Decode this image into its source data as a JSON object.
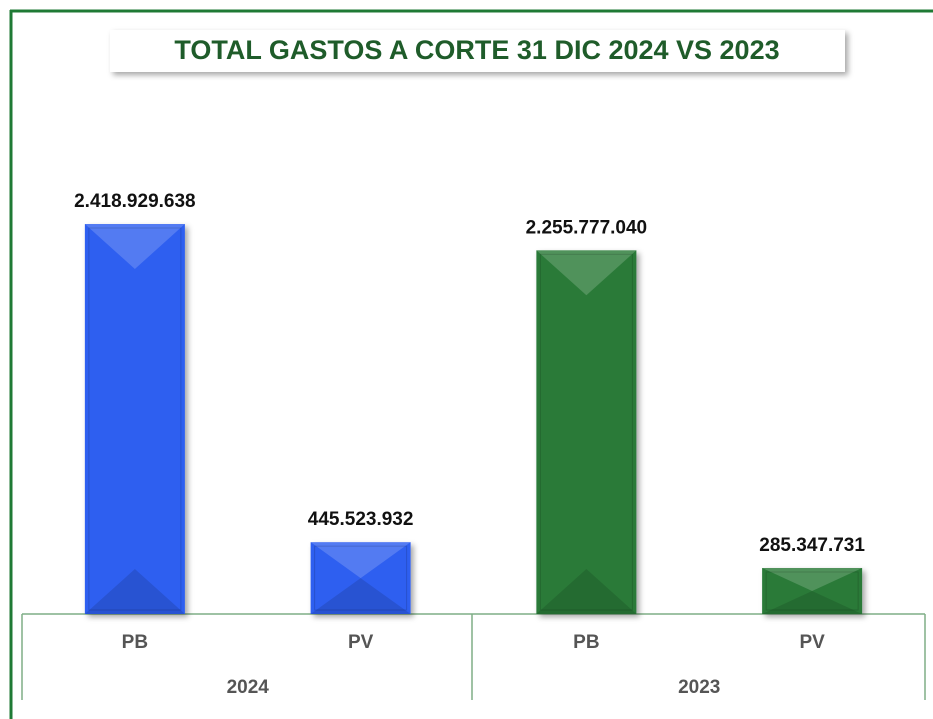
{
  "chart_data": {
    "type": "bar",
    "title": "TOTAL GASTOS A CORTE 31 DIC 2024 VS 2023",
    "categories": [
      "PB",
      "PV",
      "PB",
      "PV"
    ],
    "groups": [
      "2024",
      "2023"
    ],
    "values": [
      2418929638,
      445523932,
      2255777040,
      285347731
    ],
    "value_labels": [
      "2.418.929.638",
      "445.523.932",
      "2.255.777.040",
      "285.347.731"
    ],
    "colors": [
      "#2f5ff0",
      "#2f5ff0",
      "#2a7a38",
      "#2a7a38"
    ]
  }
}
